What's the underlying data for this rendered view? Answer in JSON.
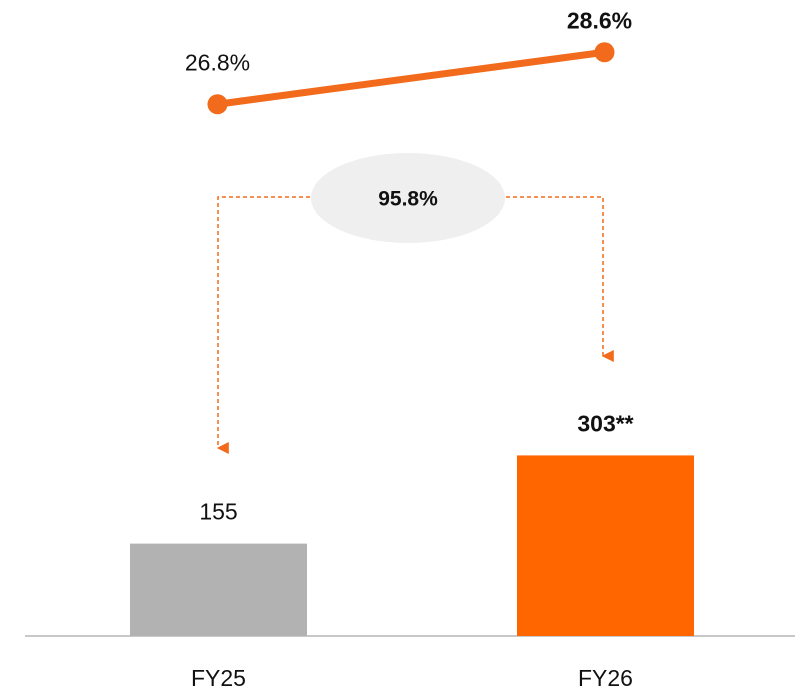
{
  "chart_data": {
    "type": "bar",
    "categories": [
      "FY25",
      "FY26"
    ],
    "series": [
      {
        "type": "bar",
        "colors": [
          "#b2b2b2",
          "#ff6600"
        ],
        "values": [
          155,
          303
        ],
        "value_labels": [
          "155",
          "303**"
        ]
      },
      {
        "type": "line",
        "axis": "y2",
        "color": "#f26a1b",
        "values": [
          26.8,
          28.6
        ],
        "value_labels": [
          "26.8%",
          "28.6%"
        ]
      }
    ],
    "annotation": "95.8%"
  }
}
